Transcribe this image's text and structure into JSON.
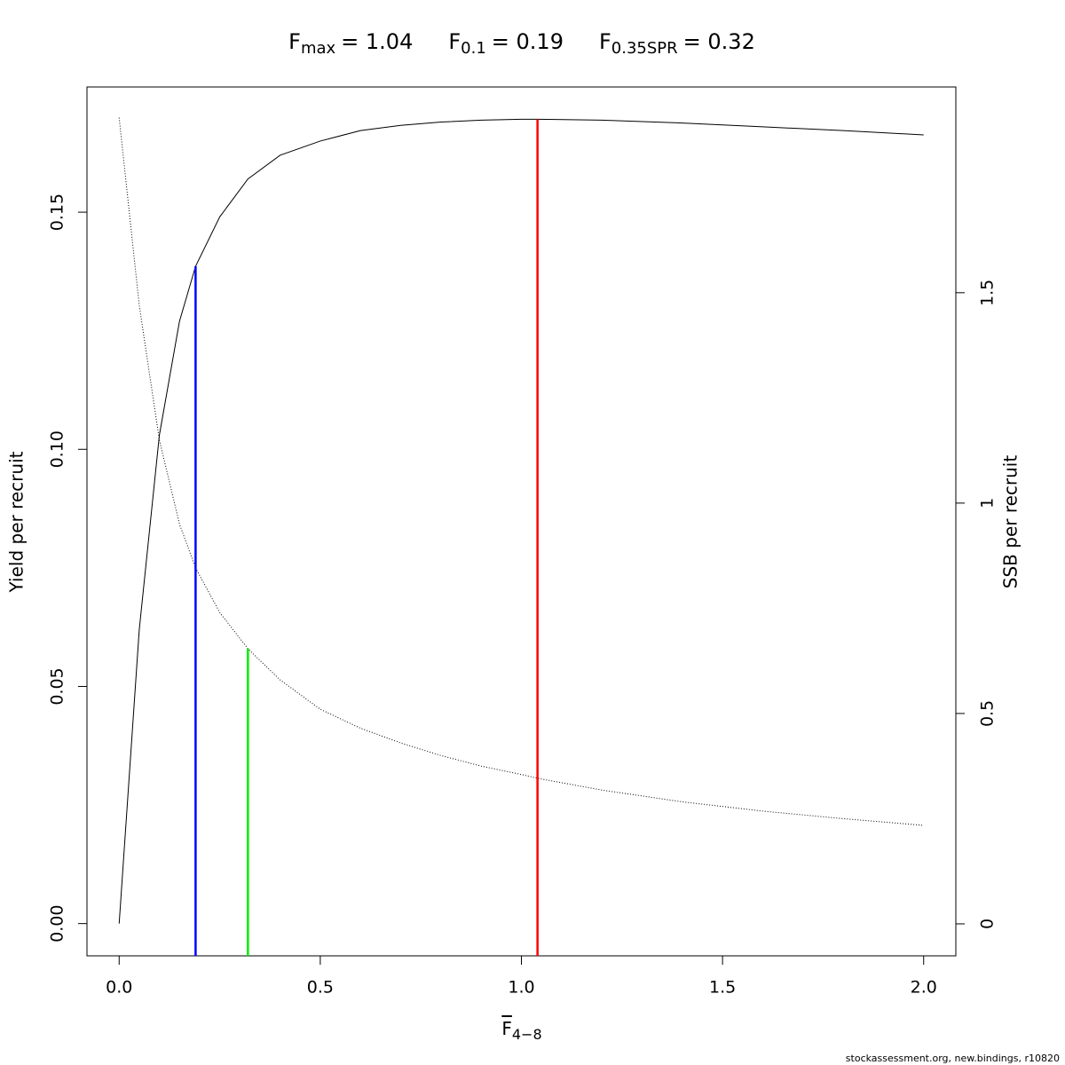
{
  "chart_data": {
    "type": "line",
    "title": [
      {
        "base": "F",
        "sub": "max",
        "rest": "= 1.04"
      },
      {
        "base": "F",
        "sub": "0.1",
        "rest": "= 0.19"
      },
      {
        "base": "F",
        "sub": "0.35SPR",
        "rest": "= 0.32"
      }
    ],
    "xlabel": {
      "base": "F",
      "sub": "4−8"
    },
    "ylabel": "Yield per recruit",
    "y2label": "SSB per recruit",
    "footer": "stockassessment.org, new.bindings, r10820",
    "x": [
      0,
      0.05,
      0.1,
      0.15,
      0.19,
      0.25,
      0.32,
      0.4,
      0.5,
      0.6,
      0.7,
      0.8,
      0.9,
      1.0,
      1.04,
      1.2,
      1.4,
      1.6,
      1.8,
      2.0
    ],
    "series": [
      {
        "color": "#000000",
        "line_style": "solid",
        "values": [
          0,
          0.062,
          0.103,
          0.127,
          0.1386,
          0.149,
          0.157,
          0.162,
          0.165,
          0.1672,
          0.1683,
          0.169,
          0.1694,
          0.1696,
          0.1696,
          0.1694,
          0.1688,
          0.168,
          0.1672,
          0.1663
        ]
      },
      {
        "color": "#000000",
        "line_style": "dotted",
        "axis": "y2",
        "values": [
          1.916,
          1.47,
          1.15,
          0.95,
          0.846,
          0.74,
          0.654,
          0.58,
          0.51,
          0.465,
          0.43,
          0.4,
          0.375,
          0.355,
          0.346,
          0.318,
          0.29,
          0.268,
          0.25,
          0.234
        ]
      }
    ],
    "reference_lines": [
      {
        "x": 0.19,
        "y": 0.1386,
        "axis": "y",
        "color": "#0000ff"
      },
      {
        "x": 0.32,
        "y": 0.654,
        "axis": "y2",
        "color": "#00ee00"
      },
      {
        "x": 1.04,
        "y": 0.1696,
        "axis": "y",
        "color": "#ff0000"
      }
    ],
    "xlim": [
      -0.08,
      2.08
    ],
    "xticks": [
      {
        "value": 0,
        "label": "0.0"
      },
      {
        "value": 0.5,
        "label": "0.5"
      },
      {
        "value": 1,
        "label": "1.0"
      },
      {
        "value": 1.5,
        "label": "1.5"
      },
      {
        "value": 2,
        "label": "2.0"
      }
    ],
    "ylim": [
      -0.0068,
      0.1764
    ],
    "yticks": [
      {
        "value": 0,
        "label": "0.00"
      },
      {
        "value": 0.05,
        "label": "0.05"
      },
      {
        "value": 0.1,
        "label": "0.10"
      },
      {
        "value": 0.15,
        "label": "0.15"
      }
    ],
    "y2lim": [
      -0.076,
      1.989
    ],
    "y2ticks": [
      0,
      0.5,
      1,
      1.5
    ]
  }
}
